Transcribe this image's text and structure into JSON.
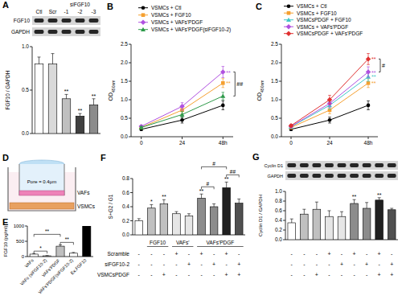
{
  "chart_data": [
    {
      "panel": "A",
      "type": "bar",
      "blot_rows": [
        "FGF10",
        "GAPDH"
      ],
      "categories": [
        "Ctl",
        "Scr",
        "-1",
        "-2",
        "-3"
      ],
      "group_label": "siFGF10",
      "group_span": [
        2,
        4
      ],
      "y_label": "FGF10 / GAPDH",
      "values": [
        0.8,
        0.8,
        0.4,
        0.2,
        0.33
      ],
      "errors": [
        0.08,
        0.12,
        0.05,
        0.03,
        0.07
      ],
      "annotations": [
        null,
        null,
        "**",
        "**",
        "**"
      ],
      "colors": [
        "#ffffff",
        "#d9d9d9",
        "#bfbfbf",
        "#404040",
        "#8c8c8c"
      ],
      "ylim": [
        0,
        1.0
      ],
      "yticks": [
        {
          "value": 0,
          "label": "0.0"
        },
        0.5,
        {
          "value": 1,
          "label": "1.0"
        }
      ]
    },
    {
      "panel": "B",
      "type": "line",
      "x": [
        0,
        24,
        48
      ],
      "xlim": [
        -6,
        54
      ],
      "xticks": [
        0,
        24,
        {
          "value": 48,
          "label": "48h"
        }
      ],
      "ylim": [
        0,
        2.5
      ],
      "yticks": [
        {
          "value": 0,
          "label": "0.0"
        },
        0.5,
        {
          "value": 1,
          "label": "1.0"
        },
        1.5,
        {
          "value": 2,
          "label": "2.0"
        },
        2.5
      ],
      "y_label": "OD",
      "y_label_sub": "450nm",
      "legend": "top-left",
      "series": [
        {
          "name": "VSMCs + Ctl",
          "color": "#000000",
          "marker": "circle",
          "values": [
            0.2,
            0.45,
            0.85
          ],
          "errors": [
            0.03,
            0.08,
            0.12
          ]
        },
        {
          "name": "VSMCs + FGF10",
          "color": "#f5a030",
          "marker": "square",
          "values": [
            0.25,
            0.72,
            1.45
          ],
          "errors": [
            0.03,
            0.1,
            0.12
          ],
          "annotations": [
            null,
            null,
            "**"
          ]
        },
        {
          "name": "VSMCs + VAFs'PDGF",
          "color": "#b050e0",
          "marker": "diamond",
          "values": [
            0.28,
            0.82,
            1.75
          ],
          "errors": [
            0.03,
            0.1,
            0.15
          ],
          "annotations": [
            null,
            null,
            "**"
          ]
        },
        {
          "name": "VSMCs + VAFs'PDGF(siFGF10-2)",
          "color": "#2e9a4a",
          "marker": "triangle",
          "values": [
            0.25,
            0.6,
            1.1
          ],
          "errors": [
            0.03,
            0.08,
            0.1
          ]
        }
      ],
      "comparisons": [
        {
          "text": "##",
          "pair": [
            2,
            3
          ]
        }
      ]
    },
    {
      "panel": "C",
      "type": "line",
      "x": [
        0,
        24,
        48
      ],
      "xlim": [
        -6,
        54
      ],
      "xticks": [
        0,
        24,
        {
          "value": 48,
          "label": "48h"
        }
      ],
      "ylim": [
        0,
        2.5
      ],
      "yticks": [
        {
          "value": 0,
          "label": "0.0"
        },
        0.5,
        {
          "value": 1,
          "label": "1.0"
        },
        1.5,
        {
          "value": 2,
          "label": "2.0"
        },
        2.5
      ],
      "y_label": "OD",
      "y_label_sub": "450nm",
      "legend": "top-left",
      "series": [
        {
          "name": "VSMCs + Ctl",
          "color": "#000000",
          "marker": "circle",
          "values": [
            0.2,
            0.45,
            0.85
          ],
          "errors": [
            0.03,
            0.08,
            0.12
          ]
        },
        {
          "name": "VSMCs + FGF10",
          "color": "#f5a030",
          "marker": "square",
          "values": [
            0.25,
            0.72,
            1.45
          ],
          "errors": [
            0.03,
            0.1,
            0.12
          ],
          "annotations": [
            null,
            null,
            "**"
          ]
        },
        {
          "name": "VSMCsPDGF + FGF10",
          "color": "#40c8c8",
          "marker": "triangle",
          "values": [
            0.27,
            0.85,
            1.62
          ],
          "errors": [
            0.03,
            0.1,
            0.12
          ],
          "annotations": [
            null,
            null,
            "**"
          ]
        },
        {
          "name": "VSMCs + VAFs'PDGF",
          "color": "#b050e0",
          "marker": "diamond",
          "values": [
            0.28,
            0.9,
            1.75
          ],
          "errors": [
            0.03,
            0.1,
            0.14
          ],
          "annotations": [
            null,
            null,
            "**"
          ]
        },
        {
          "name": "VSMCsPDGF + VAFs'PDGF",
          "color": "#e03030",
          "marker": "diamond",
          "values": [
            0.3,
            1.0,
            2.1
          ],
          "errors": [
            0.03,
            0.12,
            0.15
          ],
          "annotations": [
            null,
            null,
            "**"
          ]
        }
      ],
      "comparisons": [
        {
          "text": "#",
          "pair": [
            4,
            3
          ]
        }
      ]
    },
    {
      "panel": "E",
      "type": "bar",
      "categories": [
        "VAFs",
        "VAFs (siFGF10-2)",
        "VAFs'PDGF",
        "VAFs'PDGF(siFGF10-2)",
        "Ex.FGF10"
      ],
      "y_label": "FGF10 (pg/ml)",
      "values": [
        80,
        25,
        340,
        110,
        1000
      ],
      "errors": [
        20,
        8,
        45,
        25,
        0
      ],
      "colors": [
        "#ffffff",
        "#ffffff",
        "#bfbfbf",
        "#ffffff",
        "#000000"
      ],
      "ylim": [
        0,
        1000
      ],
      "yticks": [
        0,
        500,
        1000
      ],
      "comparisons": [
        {
          "text": "*",
          "pair": [
            0,
            1
          ]
        },
        {
          "text": "**",
          "pair": [
            0,
            2
          ]
        },
        {
          "text": "**",
          "pair": [
            2,
            3
          ]
        }
      ]
    },
    {
      "panel": "F",
      "type": "bar",
      "categories": [
        null,
        null,
        null,
        null,
        null,
        null,
        null,
        null,
        null
      ],
      "y_label": "S+G2 / G1",
      "values": [
        0.2,
        0.38,
        0.44,
        0.3,
        0.27,
        0.52,
        0.4,
        0.67,
        0.45
      ],
      "errors": [
        0.03,
        0.05,
        0.06,
        0.03,
        0.03,
        0.06,
        0.04,
        0.08,
        0.06
      ],
      "colors": [
        "#ffffff",
        "#c0c0c0",
        "#c0c0c0",
        "#e6e6e6",
        "#e6e6e6",
        "#8c8c8c",
        "#8c8c8c",
        "#202020",
        "#505050"
      ],
      "annotations": [
        null,
        "*",
        "**",
        null,
        null,
        "**",
        null,
        "**",
        null
      ],
      "comparisons": [
        {
          "text": "#",
          "pair": [
            5,
            6
          ]
        },
        {
          "text": "#",
          "pair": [
            5,
            7
          ]
        },
        {
          "text": "##",
          "pair": [
            7,
            8
          ]
        }
      ],
      "ylim": [
        0,
        0.8
      ],
      "yticks": [
        {
          "value": 0,
          "label": "0.0"
        },
        0.2,
        0.4,
        0.6,
        0.8
      ],
      "group_row": [
        null,
        "FGF10",
        "FGF10",
        "VAFs'",
        "VAFs'",
        "VAFs'PDGF",
        "VAFs'PDGF",
        "VAFs'PDGF",
        "VAFs'PDGF"
      ],
      "table": [
        {
          "label": "Scramble",
          "cells": [
            "-",
            "-",
            "-",
            "+",
            "-",
            "+",
            "-",
            "+",
            "-"
          ]
        },
        {
          "label": "siFGF10-2",
          "cells": [
            "-",
            "-",
            "-",
            "-",
            "+",
            "-",
            "+",
            "-",
            "+"
          ]
        },
        {
          "label": "VSMCsPDGF",
          "cells": [
            "-",
            "-",
            "+",
            "-",
            "-",
            "-",
            "-",
            "+",
            "+"
          ]
        }
      ]
    },
    {
      "panel": "G",
      "type": "bar",
      "blot_rows": [
        "Cyclin D1",
        "GAPDH"
      ],
      "categories": [
        null,
        null,
        null,
        null,
        null,
        null,
        null,
        null,
        null
      ],
      "y_label": "Cyclin D1 / GAPDH",
      "values": [
        0.35,
        0.53,
        0.63,
        0.48,
        0.48,
        0.75,
        0.65,
        0.82,
        0.62
      ],
      "errors": [
        0.08,
        0.1,
        0.15,
        0.12,
        0.1,
        0.08,
        0.12,
        0.05,
        0.03
      ],
      "colors": [
        "#ffffff",
        "#c0c0c0",
        "#c0c0c0",
        "#e6e6e6",
        "#e6e6e6",
        "#8c8c8c",
        "#8c8c8c",
        "#202020",
        "#505050"
      ],
      "annotations": [
        null,
        null,
        null,
        null,
        null,
        "**",
        null,
        "**",
        null
      ],
      "ylim": [
        0,
        1.0
      ],
      "yticks": [
        {
          "value": 0,
          "label": "0.0"
        },
        0.2,
        0.4,
        0.6,
        0.8,
        {
          "value": 1,
          "label": "1.0"
        }
      ],
      "table": [
        {
          "cells": [
            "-",
            "-",
            "-",
            "+",
            "-",
            "+",
            "-",
            "+",
            "-"
          ]
        },
        {
          "cells": [
            "-",
            "-",
            "-",
            "-",
            "+",
            "-",
            "+",
            "-",
            "+"
          ]
        },
        {
          "cells": [
            "-",
            "-",
            "+",
            "-",
            "-",
            "-",
            "-",
            "+",
            "+"
          ]
        }
      ]
    }
  ],
  "diagram": {
    "panel": "D",
    "pore_label": "Pore = 0.4μm",
    "upper_label": "VAFs",
    "lower_label": "VSMCs"
  }
}
